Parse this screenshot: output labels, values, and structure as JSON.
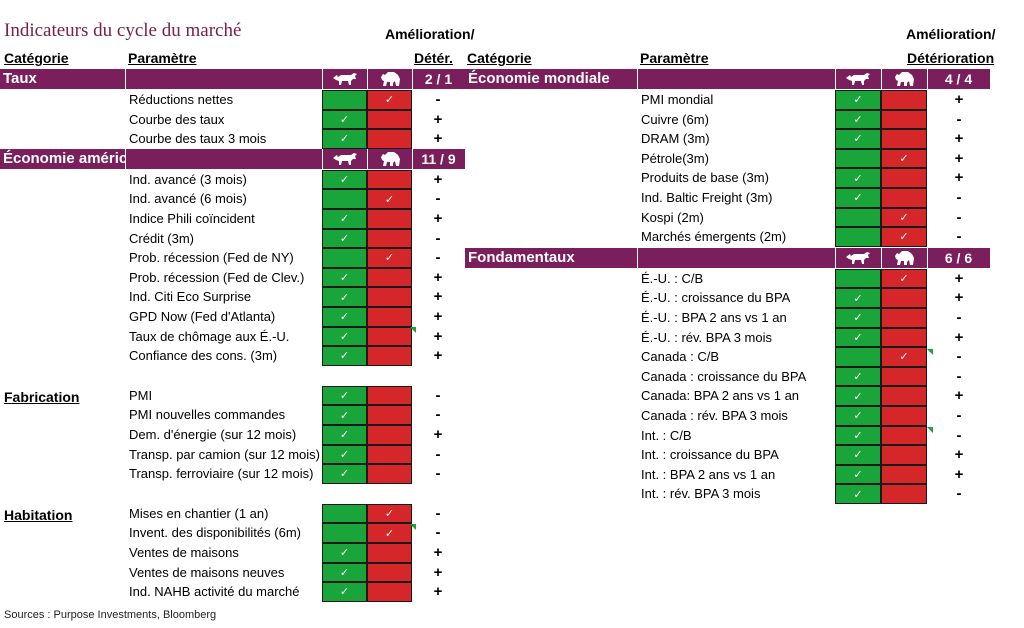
{
  "title": "Indicateurs du cycle du marché",
  "left_header": {
    "category": "Catégorie",
    "parameter": "Paramètre",
    "change_line1": "Amélioration/",
    "change_line2": "Détér."
  },
  "right_header": {
    "category": "Catégorie",
    "parameter": "Paramètre",
    "change_line1": "Amélioration/",
    "change_line2": "Détérioration"
  },
  "check_mark": "✓",
  "colors": {
    "band": "#7b1e5c",
    "green": "#1aa53a",
    "red": "#d5262a",
    "title": "#7a2048"
  },
  "icons": {
    "bull": "bull-icon",
    "bear": "bear-icon"
  },
  "left_sections": [
    {
      "name": "Taux",
      "style": "band",
      "score": "2 / 1",
      "rows": [
        {
          "label": "Réductions nettes",
          "green": "",
          "red": "✓",
          "sign": "-"
        },
        {
          "label": "Courbe des taux",
          "green": "✓",
          "red": "",
          "sign": "+"
        },
        {
          "label": "Courbe des taux 3 mois",
          "green": "✓",
          "red": "",
          "sign": "+"
        }
      ]
    },
    {
      "name": "Économie américaine",
      "style": "band",
      "score": "11 / 9",
      "rows": [
        {
          "label": "Ind. avancé (3 mois)",
          "green": "✓",
          "red": "",
          "sign": "+"
        },
        {
          "label": "Ind. avancé (6 mois)",
          "green": "",
          "red": "✓",
          "sign": "-"
        },
        {
          "label": "Indice Phili coïncident",
          "green": "✓",
          "red": "",
          "sign": "+"
        },
        {
          "label": "Crédit (3m)",
          "green": "✓",
          "red": "",
          "sign": "-"
        },
        {
          "label": "Prob. récession (Fed de NY)",
          "green": "",
          "red": "✓",
          "sign": "-"
        },
        {
          "label": "Prob. récession (Fed de Clev.)",
          "green": "✓",
          "red": "",
          "sign": "+"
        },
        {
          "label": "Ind. Citi Eco Surprise",
          "green": "✓",
          "red": "",
          "sign": "+"
        },
        {
          "label": "GPD Now (Fed d'Atlanta)",
          "green": "✓",
          "red": "",
          "sign": "+"
        },
        {
          "label": "Taux de chômage aux É.-U.",
          "green": "✓",
          "red": "",
          "sign": "+"
        },
        {
          "label": "Confiance des cons. (3m)",
          "green": "✓",
          "red": "",
          "sign": "+"
        }
      ]
    },
    {
      "name": "Fabrication",
      "style": "plain",
      "rows": [
        {
          "label": "PMI",
          "green": "✓",
          "red": "",
          "sign": "-"
        },
        {
          "label": "PMI nouvelles commandes",
          "green": "✓",
          "red": "",
          "sign": "-"
        },
        {
          "label": "Dem. d'énergie (sur 12 mois)",
          "green": "✓",
          "red": "",
          "sign": "+"
        },
        {
          "label": "Transp. par camion (sur 12 mois)",
          "green": "✓",
          "red": "",
          "sign": "-"
        },
        {
          "label": "Transp. ferroviaire (sur 12 mois)",
          "green": "✓",
          "red": "",
          "sign": "-"
        }
      ]
    },
    {
      "name": "Habitation",
      "style": "plain",
      "rows": [
        {
          "label": "Mises en chantier (1 an)",
          "green": "",
          "red": "✓",
          "sign": "-"
        },
        {
          "label": "Invent. des disponibilités (6m)",
          "green": "",
          "red": "✓",
          "sign": "-"
        },
        {
          "label": "Ventes de maisons",
          "green": "✓",
          "red": "",
          "sign": "+"
        },
        {
          "label": "Ventes de maisons neuves",
          "green": "✓",
          "red": "",
          "sign": "+"
        },
        {
          "label": "Ind. NAHB activité du marché",
          "green": "✓",
          "red": "",
          "sign": "+"
        }
      ]
    }
  ],
  "right_sections": [
    {
      "name": "Économie mondiale",
      "style": "band",
      "score": "4 / 4",
      "rows": [
        {
          "label": "PMI mondial",
          "green": "✓",
          "red": "",
          "sign": "+"
        },
        {
          "label": "Cuivre (6m)",
          "green": "✓",
          "red": "",
          "sign": "-"
        },
        {
          "label": "DRAM (3m)",
          "green": "✓",
          "red": "",
          "sign": "+"
        },
        {
          "label": "Pétrole(3m)",
          "green": "",
          "red": "✓",
          "sign": "+"
        },
        {
          "label": "Produits de base (3m)",
          "green": "✓",
          "red": "",
          "sign": "+"
        },
        {
          "label": "Ind. Baltic Freight (3m)",
          "green": "✓",
          "red": "",
          "sign": "-"
        },
        {
          "label": "Kospi (2m)",
          "green": "",
          "red": "✓",
          "sign": "-"
        },
        {
          "label": "Marchés émergents (2m)",
          "green": "",
          "red": "✓",
          "sign": "-"
        }
      ]
    },
    {
      "name": "Fondamentaux",
      "style": "band",
      "score": "6 / 6",
      "rows": [
        {
          "label": "É.-U. : C/B",
          "green": "",
          "red": "✓",
          "sign": "+"
        },
        {
          "label": "É.-U. : croissance du BPA",
          "green": "✓",
          "red": "",
          "sign": "+"
        },
        {
          "label": "É.-U. : BPA 2 ans vs 1 an",
          "green": "✓",
          "red": "",
          "sign": "-"
        },
        {
          "label": "É.-U. : rév. BPA 3 mois",
          "green": "✓",
          "red": "",
          "sign": "+"
        },
        {
          "label": "Canada : C/B",
          "green": "",
          "red": "✓",
          "sign": "-"
        },
        {
          "label": "Canada : croissance du BPA",
          "green": "✓",
          "red": "",
          "sign": "-"
        },
        {
          "label": "Canada: BPA 2 ans vs 1 an",
          "green": "✓",
          "red": "",
          "sign": "+"
        },
        {
          "label": "Canada : rév. BPA 3 mois",
          "green": "✓",
          "red": "",
          "sign": "-"
        },
        {
          "label": "Int. : C/B",
          "green": "✓",
          "red": "",
          "sign": "-"
        },
        {
          "label": "Int. : croissance du BPA",
          "green": "✓",
          "red": "",
          "sign": "+"
        },
        {
          "label": "Int. : BPA 2 ans vs 1 an",
          "green": "✓",
          "red": "",
          "sign": "+"
        },
        {
          "label": "Int. : rév. BPA 3 mois",
          "green": "✓",
          "red": "",
          "sign": "-"
        }
      ]
    }
  ],
  "source": "Sources : Purpose Investments, Bloomberg"
}
